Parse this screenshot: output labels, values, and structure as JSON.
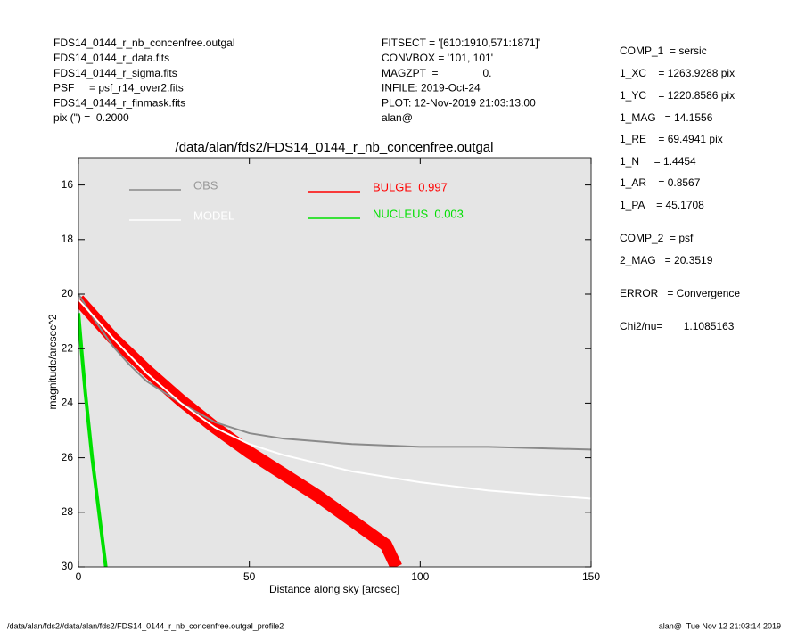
{
  "header": {
    "left": [
      "FDS14_0144_r_nb_concenfree.outgal",
      "FDS14_0144_r_data.fits",
      "FDS14_0144_r_sigma.fits",
      "PSF     = psf_r14_over2.fits",
      "FDS14_0144_r_finmask.fits",
      "pix (\") =  0.2000"
    ],
    "middle": [
      "FITSECT = '[610:1910,571:1871]'",
      "CONVBOX = '101, 101'",
      "MAGZPT  =               0.",
      "INFILE: 2019-Oct-24",
      "PLOT: 12-Nov-2019 21:03:13.00",
      "alan@"
    ],
    "right": [
      "COMP_1  = sersic",
      "1_XC    = 1263.9288 pix",
      "1_YC    = 1220.8586 pix",
      "1_MAG   = 14.1556",
      "1_RE    = 69.4941 pix",
      "1_N     = 1.4454",
      "1_AR    = 0.8567",
      "1_PA    = 45.1708",
      "COMP_2  = psf",
      "2_MAG   = 20.3519",
      "ERROR   = Convergence",
      "Chi2/nu=       1.1085163"
    ]
  },
  "chart_data": {
    "type": "line",
    "title": "/data/alan/fds2/FDS14_0144_r_nb_concenfree.outgal",
    "x_label": "Distance along sky [arcsec]",
    "y_label": "magnitude/arcsec^2",
    "xlim": [
      0,
      150
    ],
    "xticks": [
      0,
      50,
      100,
      150
    ],
    "ylim": [
      30,
      15
    ],
    "yticks": [
      16,
      18,
      20,
      22,
      24,
      26,
      28,
      30
    ],
    "series": [
      {
        "name": "OBS",
        "color": "#8a8a8a",
        "x": [
          0,
          5,
          10,
          15,
          20,
          30,
          40,
          50,
          60,
          80,
          100,
          120,
          150
        ],
        "values": [
          20.0,
          21.0,
          21.9,
          22.6,
          23.2,
          24.0,
          24.7,
          25.1,
          25.3,
          25.5,
          25.6,
          25.6,
          25.7
        ]
      },
      {
        "name": "MODEL",
        "color": "#ffffff",
        "x": [
          0,
          5,
          10,
          20,
          30,
          40,
          50,
          60,
          80,
          100,
          120,
          150
        ],
        "values": [
          20.2,
          20.9,
          21.6,
          22.9,
          24.0,
          24.9,
          25.5,
          25.9,
          26.5,
          26.9,
          27.2,
          27.5
        ]
      },
      {
        "name": "BULGE  0.997",
        "color": "#ff0000",
        "x": [
          0,
          10,
          20,
          30,
          40,
          50,
          60,
          70,
          80,
          90,
          93
        ],
        "values": [
          20.2,
          21.6,
          22.8,
          23.9,
          24.9,
          25.8,
          26.6,
          27.4,
          28.3,
          29.2,
          30
        ]
      },
      {
        "name": "NUCLEUS  0.003",
        "color": "#00e000",
        "x": [
          0,
          1,
          2,
          3,
          4,
          5,
          6,
          7,
          8
        ],
        "values": [
          20.7,
          22.2,
          23.6,
          24.8,
          26.0,
          27.0,
          28.0,
          29.0,
          30.0
        ]
      }
    ]
  },
  "footer": {
    "left": "/data/alan/fds2//data/alan/fds2/FDS14_0144_r_nb_concenfree.outgal_profile2",
    "right": "alan@  Tue Nov 12 21:03:14 2019"
  }
}
